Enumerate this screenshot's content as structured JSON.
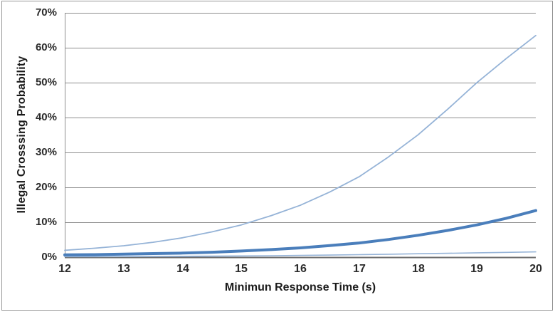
{
  "chart_data": {
    "type": "line",
    "title": "",
    "xlabel": "Minimun Response Time (s)",
    "ylabel": "Illegal Crosssing Probability",
    "xlim": [
      12,
      20
    ],
    "ylim": [
      0,
      70
    ],
    "grid": "horizontal",
    "legend": "none",
    "grid_color": "#8e8e8e",
    "axis_color": "#6e6e6e",
    "frame_color": "#979797",
    "x_tick_labels": [
      "12",
      "13",
      "14",
      "15",
      "16",
      "17",
      "18",
      "19",
      "20"
    ],
    "y_tick_labels": [
      "0%",
      "10%",
      "20%",
      "30%",
      "40%",
      "50%",
      "60%",
      "70%"
    ],
    "y_tick_values": [
      0,
      10,
      20,
      30,
      40,
      50,
      60,
      70
    ],
    "x": [
      12,
      12.5,
      13,
      13.5,
      14,
      14.5,
      15,
      15.5,
      16,
      16.5,
      17,
      17.5,
      18,
      18.5,
      19,
      19.5,
      20
    ],
    "series": [
      {
        "name": "upper-thin-curve",
        "color": "#95b3d7",
        "width": 1.8,
        "values": [
          1.9,
          2.5,
          3.2,
          4.2,
          5.5,
          7.2,
          9.2,
          11.8,
          14.8,
          18.6,
          23,
          28.7,
          35,
          42.3,
          50,
          56.9,
          63.5
        ]
      },
      {
        "name": "lower-thin-curve",
        "color": "#95b3d7",
        "width": 1.6,
        "values": [
          0.08,
          0.09,
          0.11,
          0.14,
          0.18,
          0.22,
          0.28,
          0.35,
          0.44,
          0.54,
          0.65,
          0.78,
          0.92,
          1.05,
          1.18,
          1.3,
          1.45
        ]
      },
      {
        "name": "middle-thick-curve",
        "color": "#4a7ebb",
        "width": 4,
        "values": [
          0.6,
          0.65,
          0.8,
          0.95,
          1.1,
          1.35,
          1.7,
          2.1,
          2.6,
          3.25,
          4.0,
          5.0,
          6.2,
          7.6,
          9.2,
          11.1,
          13.3
        ]
      }
    ]
  }
}
